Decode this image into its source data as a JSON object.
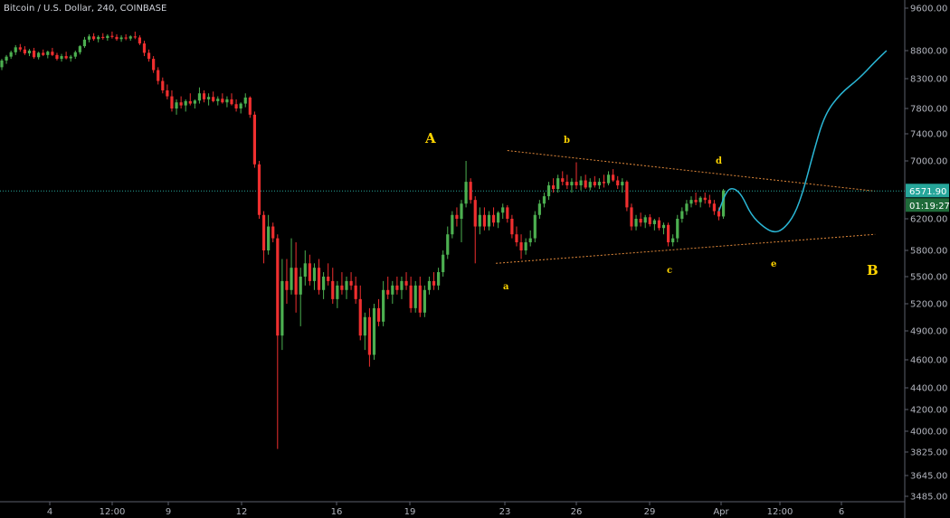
{
  "header": {
    "symbol_title": "Bitcoin / U.S. Dollar, 240, COINBASE"
  },
  "chart_data": {
    "type": "candlestick",
    "title": "Bitcoin / U.S. Dollar, 240, COINBASE",
    "xlabel": "",
    "ylabel": "",
    "grid": false,
    "colors": {
      "up": "#26a69a",
      "down": "#ef2f2f",
      "up_bright": "#4caf50",
      "price_line": "#26a69a",
      "price_badge": "#26a69a",
      "countdown_badge": "#1f6b3a",
      "triangle_lines": "#e0883a",
      "projection_curve": "#2ab7d6",
      "wave_labels": "#ffd400"
    },
    "y_axis": {
      "position": "right",
      "scale": "log",
      "ylim": [
        3485,
        9600
      ],
      "ticks": [
        "9600.00",
        "8800.00",
        "8300.00",
        "7800.00",
        "7400.00",
        "7000.00",
        "6200.00",
        "5800.00",
        "5500.00",
        "5200.00",
        "4900.00",
        "4600.00",
        "4400.00",
        "4200.00",
        "4000.00",
        "3825.00",
        "3645.00",
        "3485.00"
      ]
    },
    "x_axis": {
      "ticks": [
        "4",
        "12:00",
        "9",
        "12",
        "16",
        "19",
        "23",
        "26",
        "29",
        "Apr",
        "12:00",
        "6"
      ]
    },
    "last_price": "6571.90",
    "countdown": "01:19:27",
    "wave_labels": [
      "A",
      "b",
      "d",
      "a",
      "c",
      "e",
      "B"
    ],
    "triangle": {
      "upper": [
        [
          22.0,
          7150
        ],
        [
          38.0,
          6570
        ]
      ],
      "lower": [
        [
          21.5,
          5650
        ],
        [
          38.0,
          6000
        ]
      ]
    },
    "projection": [
      [
        31.2,
        6300
      ],
      [
        31.55,
        6585
      ],
      [
        31.85,
        6615
      ],
      [
        32.2,
        6520
      ],
      [
        32.6,
        6250
      ],
      [
        33.15,
        6090
      ],
      [
        33.6,
        6020
      ],
      [
        34.0,
        6060
      ],
      [
        34.5,
        6250
      ],
      [
        34.9,
        6600
      ],
      [
        35.3,
        7100
      ],
      [
        35.8,
        7700
      ],
      [
        36.5,
        8050
      ],
      [
        37.3,
        8300
      ],
      [
        38.0,
        8600
      ],
      [
        38.5,
        8800
      ]
    ],
    "candles": [
      [
        0.0,
        8500,
        8650,
        8450,
        8620
      ],
      [
        0.2,
        8620,
        8720,
        8560,
        8690
      ],
      [
        0.4,
        8690,
        8800,
        8650,
        8770
      ],
      [
        0.6,
        8770,
        8900,
        8720,
        8860
      ],
      [
        0.8,
        8860,
        8920,
        8780,
        8820
      ],
      [
        1.0,
        8820,
        8880,
        8720,
        8750
      ],
      [
        1.2,
        8750,
        8830,
        8700,
        8800
      ],
      [
        1.4,
        8800,
        8850,
        8650,
        8680
      ],
      [
        1.6,
        8680,
        8780,
        8640,
        8760
      ],
      [
        1.8,
        8760,
        8820,
        8700,
        8720
      ],
      [
        2.0,
        8720,
        8800,
        8660,
        8780
      ],
      [
        2.2,
        8780,
        8850,
        8700,
        8720
      ],
      [
        2.4,
        8720,
        8760,
        8620,
        8650
      ],
      [
        2.6,
        8650,
        8740,
        8600,
        8700
      ],
      [
        2.8,
        8700,
        8780,
        8640,
        8660
      ],
      [
        3.0,
        8660,
        8720,
        8600,
        8690
      ],
      [
        3.2,
        8690,
        8800,
        8650,
        8770
      ],
      [
        3.4,
        8770,
        8900,
        8730,
        8880
      ],
      [
        3.6,
        8880,
        9050,
        8850,
        9000
      ],
      [
        3.8,
        9000,
        9100,
        8950,
        9060
      ],
      [
        4.0,
        9060,
        9120,
        8980,
        9010
      ],
      [
        4.2,
        9010,
        9080,
        8950,
        9050
      ],
      [
        4.4,
        9050,
        9120,
        9000,
        9030
      ],
      [
        4.6,
        9030,
        9100,
        8980,
        9070
      ],
      [
        4.8,
        9070,
        9150,
        9020,
        9050
      ],
      [
        5.0,
        9050,
        9100,
        8980,
        9010
      ],
      [
        5.2,
        9010,
        9080,
        8960,
        9040
      ],
      [
        5.4,
        9040,
        9100,
        8990,
        9020
      ],
      [
        5.6,
        9020,
        9080,
        8980,
        9060
      ],
      [
        5.8,
        9060,
        9150,
        9010,
        9040
      ],
      [
        6.0,
        9040,
        9080,
        8900,
        8930
      ],
      [
        6.2,
        8930,
        8980,
        8700,
        8760
      ],
      [
        6.4,
        8760,
        8820,
        8600,
        8650
      ],
      [
        6.6,
        8650,
        8700,
        8400,
        8450
      ],
      [
        6.8,
        8450,
        8500,
        8200,
        8260
      ],
      [
        7.0,
        8260,
        8320,
        8050,
        8100
      ],
      [
        7.2,
        8100,
        8200,
        7950,
        8000
      ],
      [
        7.4,
        8000,
        8100,
        7750,
        7800
      ],
      [
        7.6,
        7800,
        7950,
        7700,
        7900
      ],
      [
        7.8,
        7900,
        8000,
        7800,
        7850
      ],
      [
        8.0,
        7850,
        7950,
        7750,
        7920
      ],
      [
        8.2,
        7920,
        8050,
        7850,
        7880
      ],
      [
        8.4,
        7880,
        7950,
        7800,
        7930
      ],
      [
        8.6,
        7930,
        8150,
        7880,
        8050
      ],
      [
        8.8,
        8050,
        8100,
        7900,
        7950
      ],
      [
        9.0,
        7950,
        8050,
        7850,
        7990
      ],
      [
        9.2,
        7990,
        8080,
        7900,
        7920
      ],
      [
        9.4,
        7920,
        8000,
        7850,
        7960
      ],
      [
        9.6,
        7960,
        8050,
        7880,
        7900
      ],
      [
        9.8,
        7900,
        8000,
        7820,
        7950
      ],
      [
        10.0,
        7950,
        8050,
        7850,
        7870
      ],
      [
        10.2,
        7870,
        7950,
        7750,
        7800
      ],
      [
        10.4,
        7800,
        7900,
        7720,
        7880
      ],
      [
        10.6,
        7880,
        8050,
        7820,
        7980
      ],
      [
        10.8,
        7980,
        8000,
        7650,
        7700
      ],
      [
        11.0,
        7700,
        7750,
        6900,
        6950
      ],
      [
        11.2,
        6950,
        7000,
        6200,
        6250
      ],
      [
        11.4,
        6250,
        6300,
        5650,
        5800
      ],
      [
        11.6,
        5800,
        6250,
        5750,
        6100
      ],
      [
        11.8,
        6100,
        6150,
        5900,
        5950
      ],
      [
        12.0,
        5950,
        6000,
        3850,
        4850
      ],
      [
        12.2,
        4850,
        5700,
        4700,
        5450
      ],
      [
        12.4,
        5450,
        5700,
        5200,
        5350
      ],
      [
        12.6,
        5350,
        5950,
        5300,
        5600
      ],
      [
        12.8,
        5600,
        5900,
        5100,
        5300
      ],
      [
        13.0,
        5300,
        5600,
        4950,
        5500
      ],
      [
        13.2,
        5500,
        5800,
        5400,
        5650
      ],
      [
        13.4,
        5650,
        5750,
        5400,
        5450
      ],
      [
        13.6,
        5450,
        5650,
        5350,
        5600
      ],
      [
        13.8,
        5600,
        5700,
        5300,
        5350
      ],
      [
        14.0,
        5350,
        5550,
        5250,
        5500
      ],
      [
        14.2,
        5500,
        5650,
        5400,
        5450
      ],
      [
        14.4,
        5450,
        5600,
        5200,
        5250
      ],
      [
        14.6,
        5250,
        5450,
        5150,
        5400
      ],
      [
        14.8,
        5400,
        5550,
        5300,
        5350
      ],
      [
        15.0,
        5350,
        5500,
        5250,
        5450
      ],
      [
        15.2,
        5450,
        5550,
        5350,
        5400
      ],
      [
        15.4,
        5400,
        5500,
        5200,
        5250
      ],
      [
        15.6,
        5250,
        5400,
        4800,
        4850
      ],
      [
        15.8,
        4850,
        5100,
        4700,
        5050
      ],
      [
        16.0,
        5050,
        5150,
        4550,
        4650
      ],
      [
        16.2,
        4650,
        5200,
        4600,
        5150
      ],
      [
        16.4,
        5150,
        5250,
        4950,
        5000
      ],
      [
        16.6,
        5000,
        5450,
        4950,
        5350
      ],
      [
        16.8,
        5350,
        5500,
        5250,
        5300
      ],
      [
        17.0,
        5300,
        5450,
        5200,
        5400
      ],
      [
        17.2,
        5400,
        5500,
        5300,
        5350
      ],
      [
        17.4,
        5350,
        5500,
        5250,
        5450
      ],
      [
        17.6,
        5450,
        5550,
        5350,
        5400
      ],
      [
        17.8,
        5400,
        5500,
        5100,
        5150
      ],
      [
        18.0,
        5150,
        5450,
        5100,
        5400
      ],
      [
        18.2,
        5400,
        5500,
        5050,
        5100
      ],
      [
        18.4,
        5100,
        5400,
        5050,
        5350
      ],
      [
        18.6,
        5350,
        5500,
        5300,
        5450
      ],
      [
        18.8,
        5450,
        5550,
        5350,
        5400
      ],
      [
        19.0,
        5400,
        5600,
        5350,
        5550
      ],
      [
        19.2,
        5550,
        5800,
        5500,
        5750
      ],
      [
        19.4,
        5750,
        6100,
        5700,
        6000
      ],
      [
        19.6,
        6000,
        6300,
        5950,
        6250
      ],
      [
        19.8,
        6250,
        6350,
        6100,
        6200
      ],
      [
        20.0,
        6200,
        6450,
        5900,
        6400
      ],
      [
        20.2,
        6400,
        7000,
        6350,
        6700
      ],
      [
        20.4,
        6700,
        6750,
        6400,
        6450
      ],
      [
        20.6,
        6450,
        6500,
        5650,
        6100
      ],
      [
        20.8,
        6100,
        6350,
        6000,
        6250
      ],
      [
        21.0,
        6250,
        6350,
        6050,
        6100
      ],
      [
        21.2,
        6100,
        6300,
        6050,
        6250
      ],
      [
        21.4,
        6250,
        6350,
        6100,
        6150
      ],
      [
        21.6,
        6150,
        6300,
        6080,
        6280
      ],
      [
        21.8,
        6280,
        6400,
        6200,
        6350
      ],
      [
        22.0,
        6350,
        6380,
        6150,
        6200
      ],
      [
        22.2,
        6200,
        6250,
        5950,
        6000
      ],
      [
        22.4,
        6000,
        6100,
        5850,
        5900
      ],
      [
        22.6,
        5900,
        6000,
        5700,
        5800
      ],
      [
        22.8,
        5800,
        5950,
        5750,
        5900
      ],
      [
        23.0,
        5900,
        6050,
        5850,
        5950
      ],
      [
        23.2,
        5950,
        6300,
        5900,
        6250
      ],
      [
        23.4,
        6250,
        6450,
        6200,
        6400
      ],
      [
        23.6,
        6400,
        6550,
        6350,
        6500
      ],
      [
        23.8,
        6500,
        6700,
        6450,
        6650
      ],
      [
        24.0,
        6650,
        6750,
        6550,
        6600
      ],
      [
        24.2,
        6600,
        6800,
        6550,
        6750
      ],
      [
        24.4,
        6750,
        6850,
        6650,
        6700
      ],
      [
        24.6,
        6700,
        6800,
        6600,
        6650
      ],
      [
        24.8,
        6650,
        6750,
        6550,
        6700
      ],
      [
        25.0,
        6700,
        6980,
        6600,
        6650
      ],
      [
        25.2,
        6650,
        6780,
        6580,
        6720
      ],
      [
        25.4,
        6720,
        6800,
        6600,
        6620
      ],
      [
        25.6,
        6620,
        6750,
        6580,
        6700
      ],
      [
        25.8,
        6700,
        6780,
        6620,
        6650
      ],
      [
        26.0,
        6650,
        6750,
        6600,
        6700
      ],
      [
        26.2,
        6700,
        6800,
        6620,
        6680
      ],
      [
        26.4,
        6680,
        6850,
        6650,
        6800
      ],
      [
        26.6,
        6800,
        6880,
        6700,
        6720
      ],
      [
        26.8,
        6720,
        6780,
        6600,
        6650
      ],
      [
        27.0,
        6650,
        6750,
        6550,
        6700
      ],
      [
        27.2,
        6700,
        6720,
        6300,
        6350
      ],
      [
        27.4,
        6350,
        6400,
        6050,
        6100
      ],
      [
        27.6,
        6100,
        6250,
        6050,
        6200
      ],
      [
        27.8,
        6200,
        6280,
        6100,
        6150
      ],
      [
        28.0,
        6150,
        6250,
        6080,
        6220
      ],
      [
        28.2,
        6220,
        6260,
        6100,
        6130
      ],
      [
        28.4,
        6130,
        6200,
        6050,
        6180
      ],
      [
        28.6,
        6180,
        6220,
        6050,
        6080
      ],
      [
        28.8,
        6080,
        6150,
        6000,
        6120
      ],
      [
        29.0,
        6120,
        6150,
        5850,
        5900
      ],
      [
        29.2,
        5900,
        6000,
        5850,
        5950
      ],
      [
        29.4,
        5950,
        6250,
        5900,
        6200
      ],
      [
        29.6,
        6200,
        6350,
        6150,
        6300
      ],
      [
        29.8,
        6300,
        6450,
        6250,
        6400
      ],
      [
        30.0,
        6400,
        6500,
        6350,
        6450
      ],
      [
        30.2,
        6450,
        6550,
        6380,
        6420
      ],
      [
        30.4,
        6420,
        6500,
        6350,
        6480
      ],
      [
        30.6,
        6480,
        6550,
        6400,
        6450
      ],
      [
        30.8,
        6450,
        6520,
        6350,
        6400
      ],
      [
        31.0,
        6400,
        6450,
        6250,
        6300
      ],
      [
        31.2,
        6300,
        6350,
        6180,
        6230
      ],
      [
        31.4,
        6230,
        6600,
        6200,
        6580
      ]
    ]
  }
}
